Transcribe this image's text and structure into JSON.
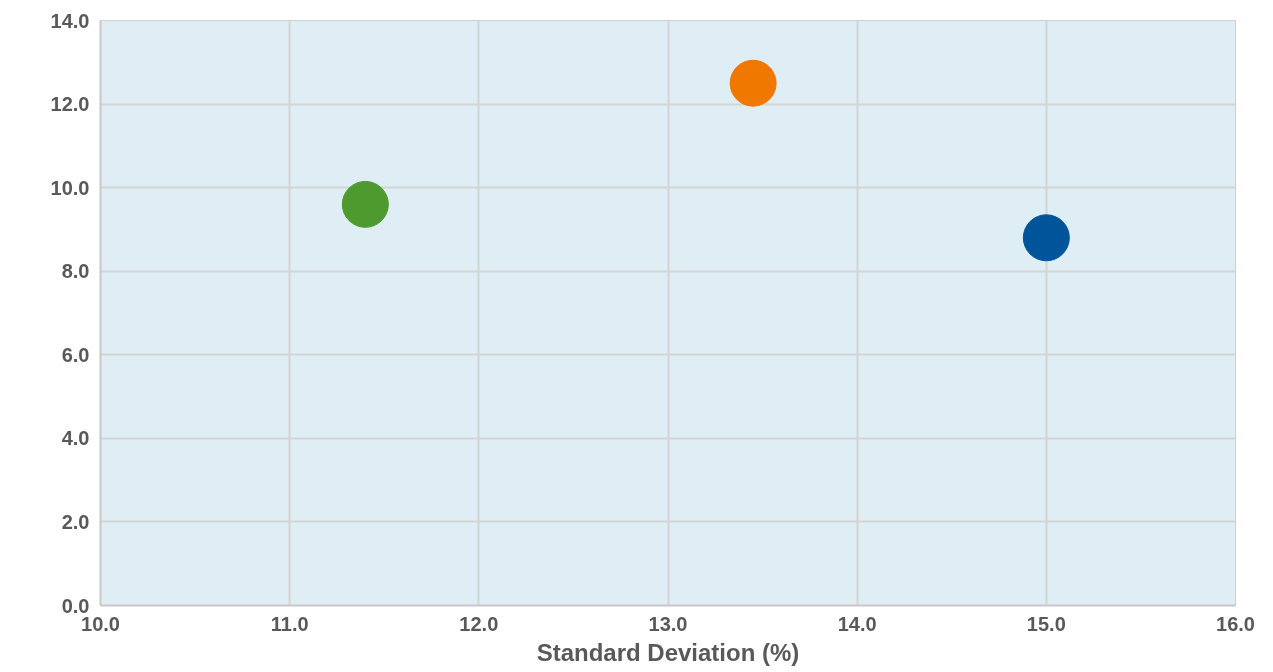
{
  "chart_data": {
    "type": "scatter",
    "xlabel": "Standard Deviation (%)",
    "x": [
      11.4,
      13.45,
      15.0
    ],
    "values": [
      9.6,
      12.5,
      8.8
    ],
    "colors": [
      "#4e9a2e",
      "#f07800",
      "#00559a"
    ],
    "marker": "circle",
    "xlim": [
      10,
      16
    ],
    "xticks": [
      {
        "value": 10,
        "label": "10.0"
      },
      {
        "value": 11,
        "label": "11.0"
      },
      {
        "value": 12,
        "label": "12.0"
      },
      {
        "value": 13,
        "label": "13.0"
      },
      {
        "value": 14,
        "label": "14.0"
      },
      {
        "value": 15,
        "label": "15.0"
      },
      {
        "value": 16,
        "label": "16.0"
      }
    ],
    "ylim": [
      0,
      14
    ],
    "yticks": [
      {
        "value": 0,
        "label": "0.0"
      },
      {
        "value": 2,
        "label": "2.0"
      },
      {
        "value": 4,
        "label": "4.0"
      },
      {
        "value": 6,
        "label": "6.0"
      },
      {
        "value": 8,
        "label": "8.0"
      },
      {
        "value": 10,
        "label": "10.0"
      },
      {
        "value": 12,
        "label": "12.0"
      },
      {
        "value": 14,
        "label": "14.0"
      }
    ],
    "grid": true
  }
}
